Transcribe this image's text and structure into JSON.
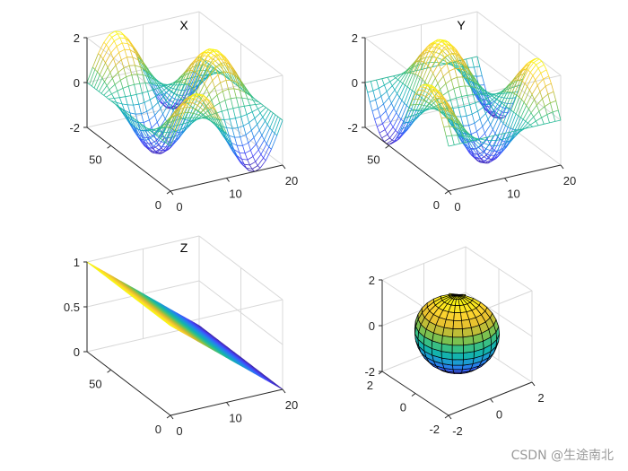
{
  "watermark": "CSDN @生途南北",
  "colormap": [
    "#3e26a8",
    "#4743f8",
    "#2d72f6",
    "#1e96d8",
    "#12b2b0",
    "#3ac082",
    "#8cc143",
    "#dfba2f",
    "#fcd42f",
    "#f9fb0e"
  ],
  "chart_data": [
    {
      "type": "mesh",
      "title": "X",
      "surface": "z = 2*sin(pi*x/10)*cos(pi*y/35) over x in [0,20], y in [0,70]",
      "x_ticks": [
        "0",
        "10",
        "20"
      ],
      "y_ticks": [
        "0",
        "50"
      ],
      "z_ticks": [
        "-2",
        "0",
        "2"
      ],
      "xlim": [
        0,
        20
      ],
      "ylim": [
        0,
        70
      ],
      "zlim": [
        -2,
        2
      ],
      "grid_lines": {
        "x": 21,
        "y": 36
      },
      "colored_by": "z (parula colormap)"
    },
    {
      "type": "mesh",
      "title": "Y",
      "surface": "z = 2*cos(pi*x/10)*sin(pi*y/35) over x in [0,20], y in [0,70]",
      "x_ticks": [
        "0",
        "10",
        "20"
      ],
      "y_ticks": [
        "0",
        "50"
      ],
      "z_ticks": [
        "-2",
        "0",
        "2"
      ],
      "xlim": [
        0,
        20
      ],
      "ylim": [
        0,
        70
      ],
      "zlim": [
        -2,
        2
      ],
      "grid_lines": {
        "x": 21,
        "y": 36
      },
      "colored_by": "z (parula colormap)"
    },
    {
      "type": "mesh",
      "title": "Z",
      "surface": "z = 1 - x/20 over x in [0,20], y in [0,70]",
      "x_ticks": [
        "0",
        "10",
        "20"
      ],
      "y_ticks": [
        "0",
        "50"
      ],
      "z_ticks": [
        "0",
        "0.5",
        "1"
      ],
      "xlim": [
        0,
        20
      ],
      "ylim": [
        0,
        70
      ],
      "zlim": [
        0,
        1
      ],
      "grid_lines": {
        "x": 21,
        "y": 36
      },
      "colored_by": "z (parula colormap)"
    },
    {
      "type": "surface",
      "title": "",
      "surface": "unit sphere scaled to radius 1.6 (latitude/longitude grid)",
      "x_ticks": [
        "-2",
        "0",
        "2"
      ],
      "y_ticks": [
        "-2",
        "0",
        "2"
      ],
      "z_ticks": [
        "-2",
        "0",
        "2"
      ],
      "xlim": [
        -2,
        2
      ],
      "ylim": [
        -2,
        2
      ],
      "zlim": [
        -2,
        2
      ],
      "grid_lines": {
        "lat": 16,
        "lon": 24
      },
      "colored_by": "z (parula colormap)"
    }
  ]
}
